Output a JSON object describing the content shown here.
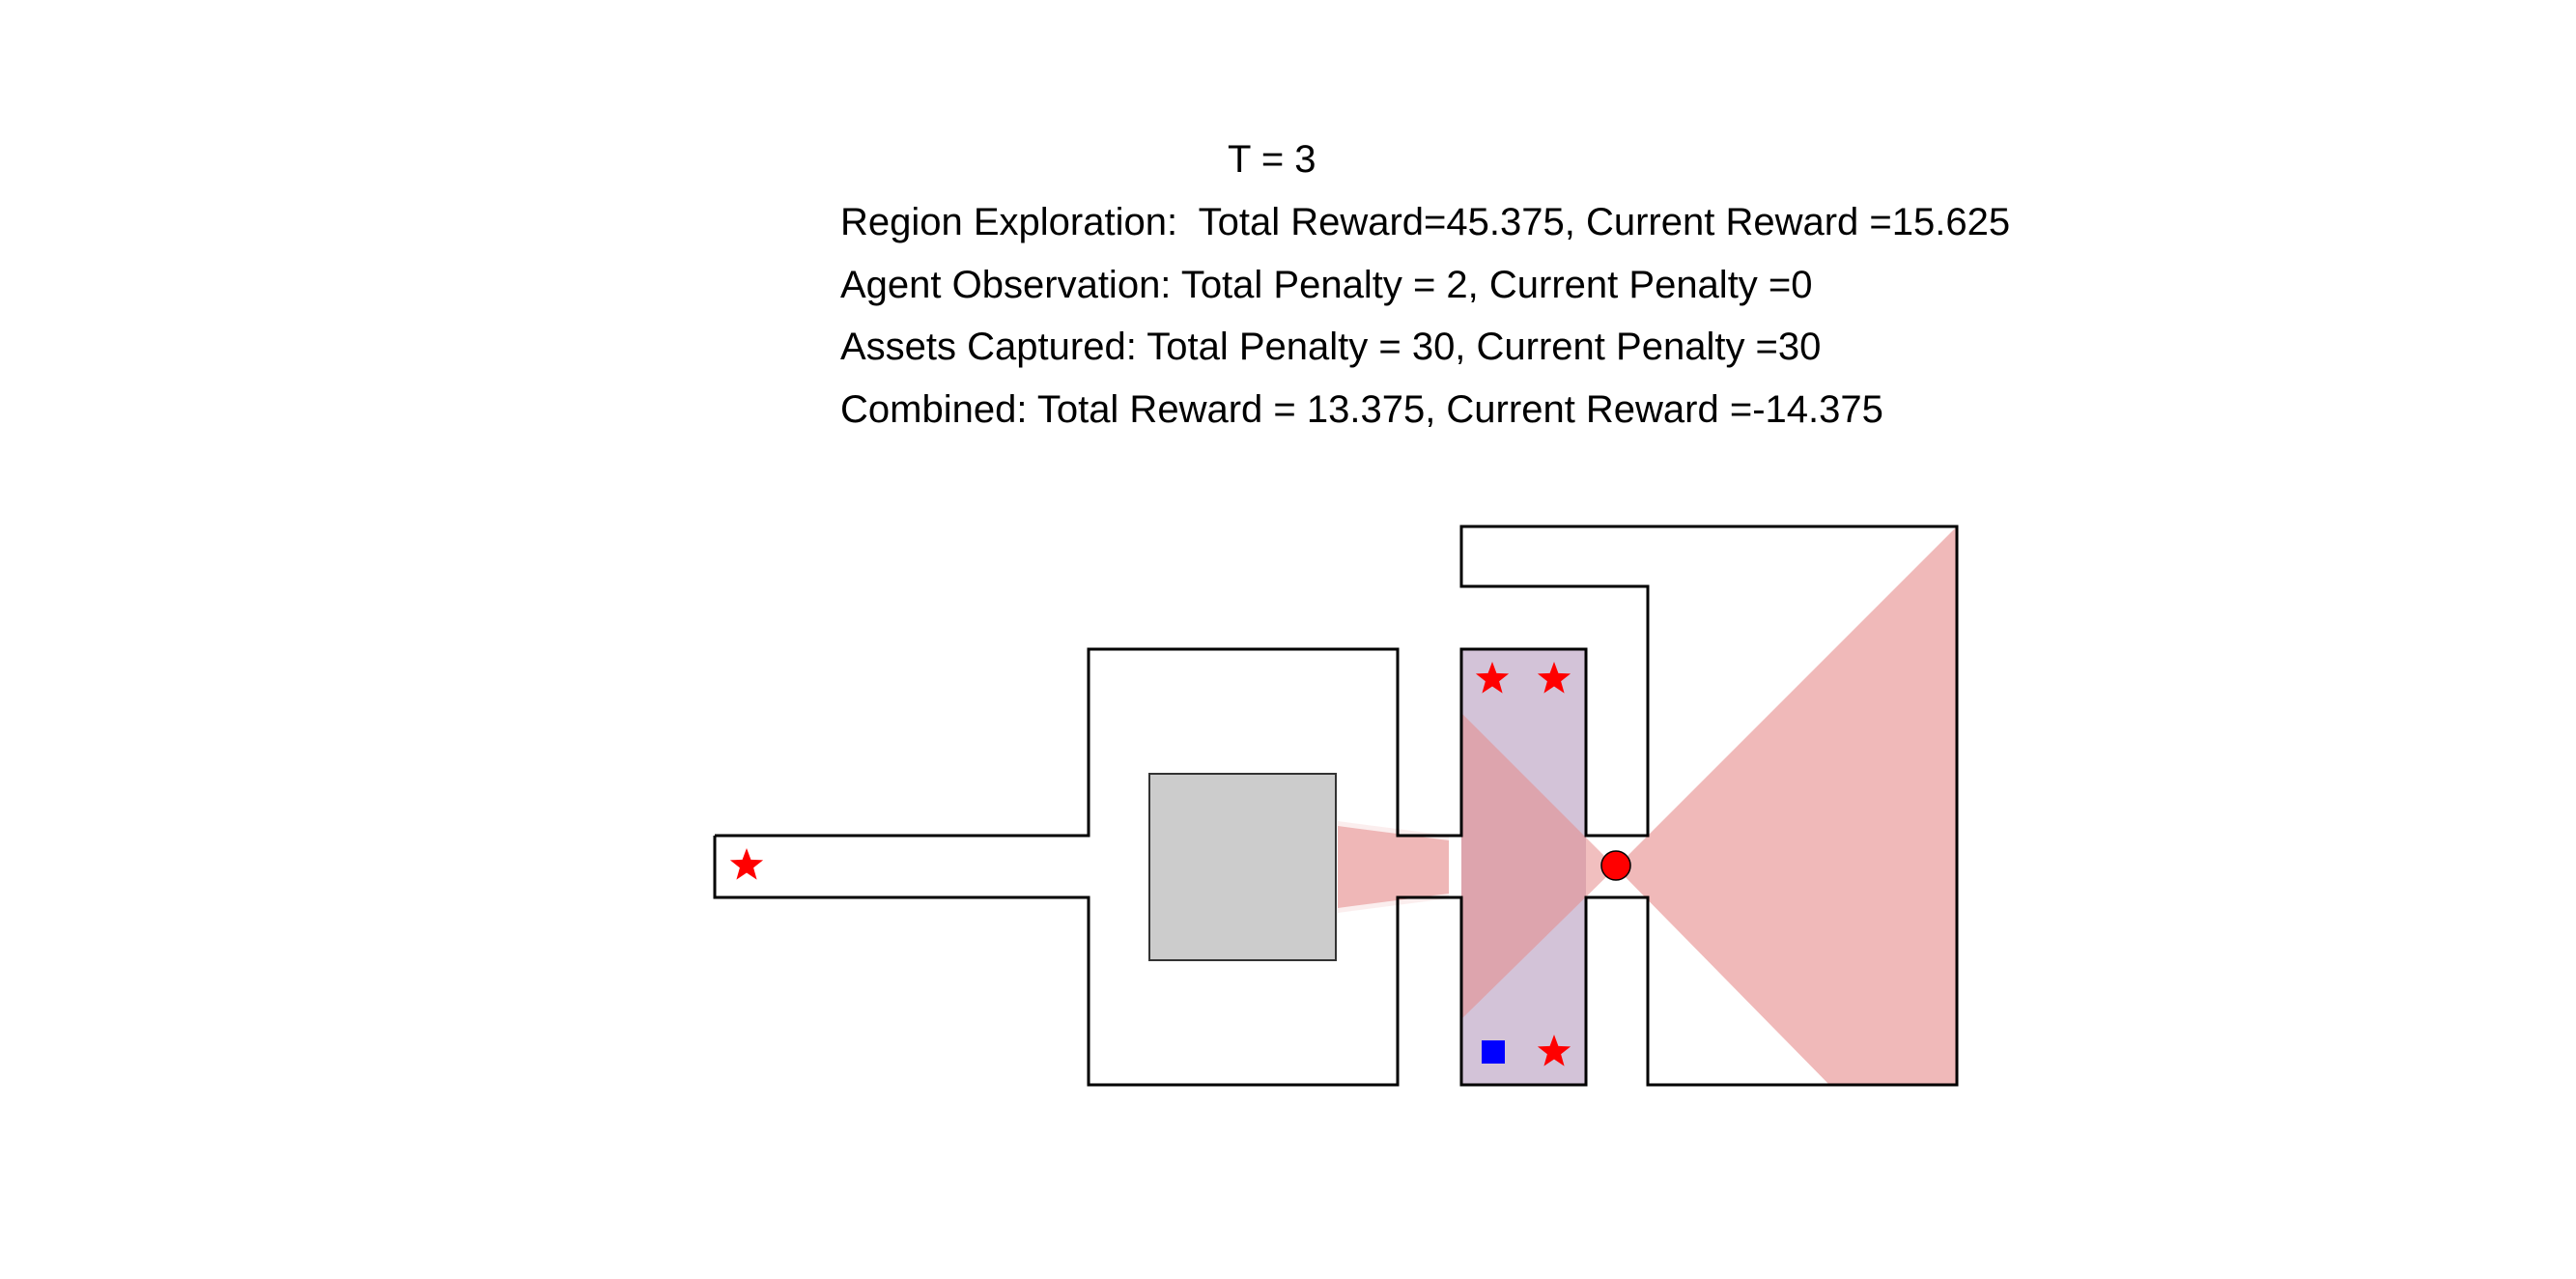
{
  "hud": {
    "time": "T = 3",
    "exploration": "Region Exploration:  Total Reward=45.375, Current Reward =15.625",
    "observation": "Agent Observation: Total Penalty = 2, Current Penalty =0",
    "assets": "Assets Captured: Total Penalty = 30, Current Penalty =30",
    "combined": "Combined: Total Reward = 13.375, Current Reward =-14.375"
  },
  "colors": {
    "wall": "#000000",
    "obstacle_fill": "#cccccc",
    "explored_region": "#d3c3d8",
    "vision_cone": "#e68a8a",
    "asset_star": "#ff0000",
    "agent": "#ff0000",
    "observer": "#0000ff"
  },
  "icons": {
    "asset": "star-icon",
    "agent": "circle-icon",
    "observer": "square-icon"
  }
}
